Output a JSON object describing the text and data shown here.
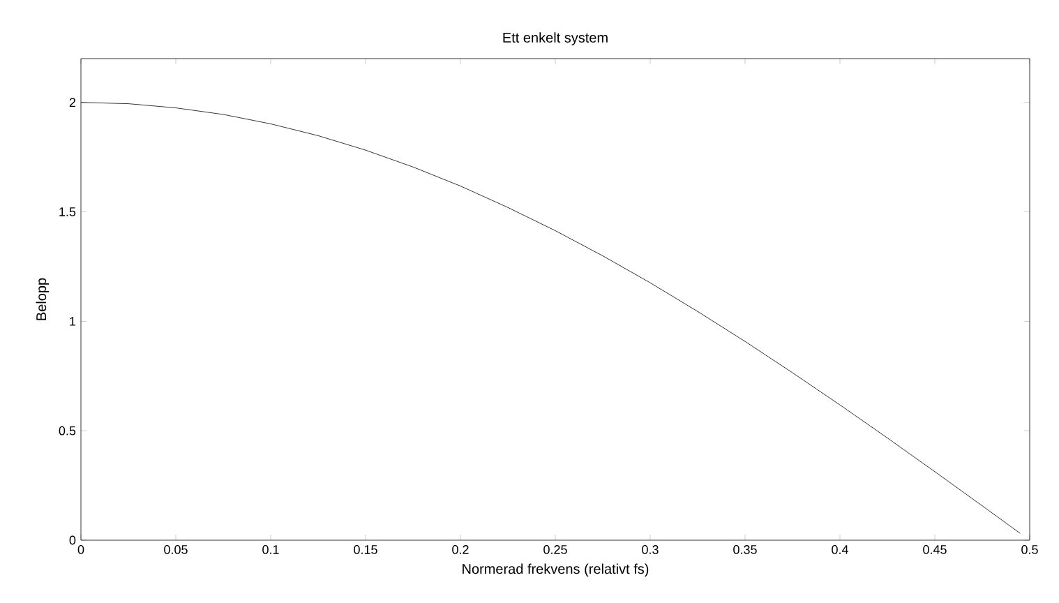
{
  "chart_data": {
    "type": "line",
    "title": "Ett enkelt system",
    "xlabel": "Normerad frekvens (relativt fs)",
    "ylabel": "Belopp",
    "x": [
      0,
      0.025,
      0.05,
      0.075,
      0.1,
      0.125,
      0.15,
      0.175,
      0.2,
      0.225,
      0.25,
      0.275,
      0.3,
      0.325,
      0.35,
      0.375,
      0.4,
      0.425,
      0.45,
      0.475,
      0.495
    ],
    "series": [
      {
        "color": "#000000",
        "values": [
          2,
          1.994,
          1.975,
          1.945,
          1.902,
          1.848,
          1.782,
          1.705,
          1.618,
          1.52,
          1.414,
          1.299,
          1.176,
          1.045,
          0.908,
          0.765,
          0.618,
          0.467,
          0.313,
          0.157,
          0.031
        ]
      }
    ],
    "xlim": [
      0,
      0.5
    ],
    "ylim": [
      0,
      2.2
    ],
    "xticks": [
      0,
      0.05,
      0.1,
      0.15,
      0.2,
      0.25,
      0.3,
      0.35,
      0.4,
      0.45,
      0.5
    ],
    "yticks": [
      0,
      0.5,
      1,
      1.5,
      2
    ],
    "grid": false
  }
}
